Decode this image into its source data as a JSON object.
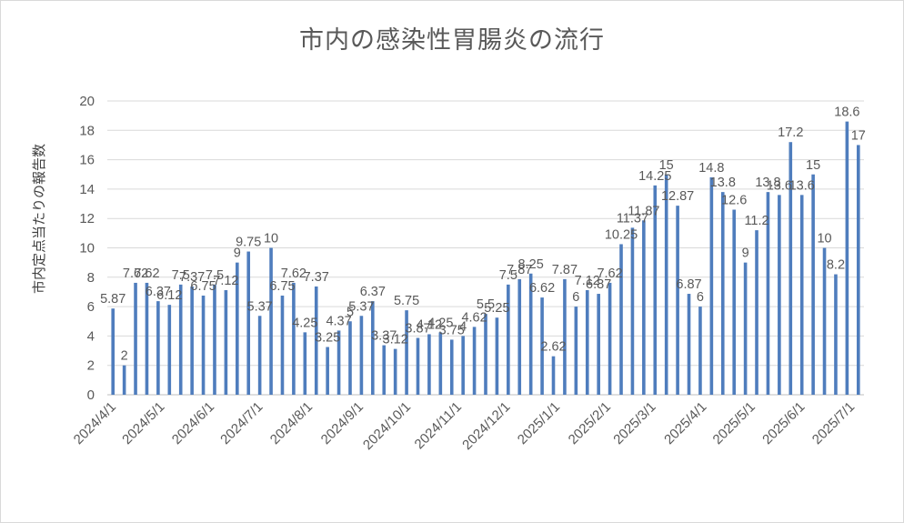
{
  "chart_data": {
    "type": "bar",
    "title": "市内の感染性胃腸炎の流行",
    "ylabel": "市内定点当たりの報告数",
    "xlabel": "",
    "ylim": [
      0,
      20
    ],
    "yticks": [
      0,
      2,
      4,
      6,
      8,
      10,
      12,
      14,
      16,
      18,
      20
    ],
    "xtick_labels": [
      "2024/4/1",
      "2024/5/1",
      "2024/6/1",
      "2024/7/1",
      "2024/8/1",
      "2024/9/1",
      "2024/10/1",
      "2024/11/1",
      "2024/12/1",
      "2025/1/1",
      "2025/2/1",
      "2025/3/1",
      "2025/4/1",
      "2025/5/1",
      "2025/6/1",
      "2025/7/1"
    ],
    "xtick_positions": [
      0,
      4.3,
      8.7,
      13,
      17.4,
      21.9,
      26.1,
      30.6,
      34.9,
      39.3,
      43.8,
      47.8,
      52.3,
      56.6,
      61,
      65.4
    ],
    "grid": true,
    "legend": "none",
    "bar_color": "#4f7dbd",
    "values": [
      5.87,
      2,
      7.62,
      7.62,
      6.37,
      6.12,
      7.5,
      7.37,
      6.75,
      7.5,
      7.12,
      9,
      9.75,
      5.37,
      10,
      6.75,
      7.62,
      4.25,
      7.37,
      3.25,
      4.37,
      5,
      5.37,
      6.37,
      3.37,
      3.12,
      5.75,
      3.87,
      4.12,
      4.25,
      3.75,
      4,
      4.62,
      5.5,
      5.25,
      7.5,
      7.87,
      8.25,
      6.62,
      2.62,
      7.87,
      6,
      7.12,
      6.87,
      7.62,
      10.25,
      11.37,
      11.87,
      14.25,
      15,
      12.87,
      6.87,
      6,
      14.8,
      13.8,
      12.6,
      9,
      11.2,
      13.8,
      13.6,
      17.2,
      13.6,
      15,
      10,
      8.2,
      18.6,
      17
    ],
    "labels": [
      "5.87",
      "2",
      "7.62",
      "7.62",
      "6.37",
      "6.12",
      "7.5",
      "7.37",
      "6.75",
      "7.5",
      "7.12",
      "9",
      "9.75",
      "5.37",
      "10",
      "6.75",
      "7.62",
      "4.25",
      "7.37",
      "3.25",
      "4.37",
      "5",
      "5.37",
      "6.37",
      "3.37",
      "3.12",
      "5.75",
      "3.87",
      "4.12",
      "4.25",
      "3.75",
      "4",
      "4.62",
      "5.5",
      "5.25",
      "7.5",
      "7.87",
      "8.25",
      "6.62",
      "2.62",
      "7.87",
      "6",
      "7.12",
      "6.87",
      "7.62",
      "10.25",
      "11.37",
      "11.87",
      "14.25",
      "15",
      "12.87",
      "6.87",
      "6",
      "14.8",
      "13.8",
      "12.6",
      "9",
      "11.2",
      "13.8",
      "13.6",
      "17.2",
      "13.6",
      "15",
      "10",
      "8.2",
      "18.6",
      "17"
    ]
  }
}
